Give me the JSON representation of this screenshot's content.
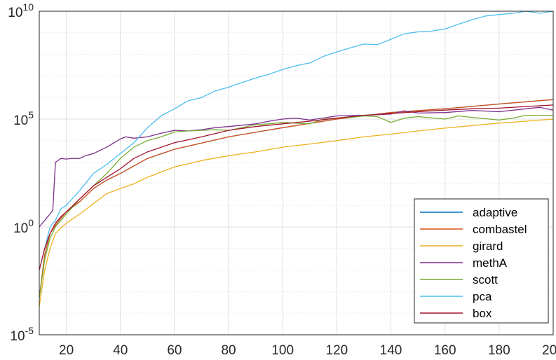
{
  "chart_data": {
    "type": "line",
    "title": "",
    "xlabel": "",
    "ylabel": "",
    "x_scale": "linear",
    "y_scale": "log",
    "xlim": [
      10,
      200
    ],
    "ylim": [
      1e-05,
      10000000000.0
    ],
    "x_ticks": [
      20,
      40,
      60,
      80,
      100,
      120,
      140,
      160,
      180,
      200
    ],
    "x_tick_labels": [
      "20",
      "40",
      "60",
      "80",
      "100",
      "120",
      "140",
      "160",
      "180",
      "200"
    ],
    "y_ticks": [
      {
        "value": 10000000000.0,
        "base": "10",
        "exp": "10"
      },
      {
        "value": 100000.0,
        "base": "10",
        "exp": "5"
      },
      {
        "value": 1,
        "base": "10",
        "exp": "0"
      },
      {
        "value": 1e-05,
        "base": "10",
        "exp": "-5"
      }
    ],
    "grid": true,
    "legend_position": "bottom-right",
    "series": [
      {
        "name": "adaptive",
        "color": "#0072BD",
        "x": [
          10,
          12,
          14,
          16,
          18,
          20,
          25,
          30,
          35,
          40,
          50,
          60,
          80,
          100,
          120,
          140,
          160,
          180,
          200
        ],
        "y": [
          0.0005,
          0.05,
          0.5,
          1.2,
          2.5,
          5,
          15,
          60,
          150,
          300,
          1500,
          4000,
          15000,
          40000,
          100000,
          200000,
          300000,
          500000,
          800000
        ]
      },
      {
        "name": "combastel",
        "color": "#D95319",
        "x": [
          10,
          12,
          14,
          16,
          18,
          20,
          25,
          30,
          35,
          40,
          50,
          60,
          80,
          100,
          120,
          140,
          160,
          180,
          200
        ],
        "y": [
          0.0005,
          0.05,
          0.5,
          1.2,
          2.5,
          5,
          15,
          60,
          150,
          300,
          1500,
          4000,
          15000,
          40000,
          100000,
          200000,
          300000,
          500000,
          800000
        ]
      },
      {
        "name": "girard",
        "color": "#EDB120",
        "x": [
          10,
          12,
          14,
          16,
          18,
          20,
          25,
          30,
          35,
          40,
          45,
          50,
          55,
          60,
          70,
          80,
          90,
          100,
          110,
          120,
          130,
          140,
          150,
          160,
          170,
          180,
          190,
          200
        ],
        "y": [
          0.0002,
          0.01,
          0.1,
          0.5,
          0.9,
          1.5,
          4,
          12,
          35,
          60,
          100,
          200,
          350,
          600,
          1200,
          2000,
          3000,
          5000,
          7000,
          10000,
          15000,
          20000,
          28000,
          38000,
          50000,
          65000,
          80000,
          100000
        ]
      },
      {
        "name": "methA",
        "color": "#7E2F8E",
        "x": [
          10,
          12,
          14,
          15,
          16,
          18,
          20,
          22,
          25,
          27,
          30,
          35,
          40,
          42,
          45,
          50,
          55,
          60,
          65,
          70,
          75,
          80,
          90,
          95,
          100,
          105,
          110,
          120,
          130,
          140,
          145,
          150,
          160,
          170,
          180,
          190,
          195,
          200
        ],
        "y": [
          1,
          2,
          4,
          6,
          1000,
          1500,
          1400,
          1500,
          1500,
          2000,
          2500,
          5000,
          12000,
          15000,
          13000,
          15000,
          22000,
          30000,
          28000,
          32000,
          40000,
          45000,
          60000,
          80000,
          100000,
          110000,
          90000,
          140000,
          150000,
          170000,
          240000,
          190000,
          200000,
          250000,
          220000,
          300000,
          350000,
          260000
        ]
      },
      {
        "name": "scott",
        "color": "#77AC30",
        "x": [
          10,
          12,
          14,
          16,
          18,
          20,
          25,
          30,
          35,
          40,
          45,
          50,
          55,
          60,
          65,
          70,
          75,
          80,
          85,
          90,
          95,
          100,
          110,
          115,
          120,
          125,
          130,
          135,
          140,
          145,
          150,
          160,
          165,
          170,
          180,
          185,
          190,
          200
        ],
        "y": [
          0.0005,
          0.03,
          0.3,
          1,
          2,
          4,
          20,
          80,
          300,
          1500,
          5000,
          10000,
          15000,
          25000,
          28000,
          30000,
          32000,
          30000,
          40000,
          55000,
          60000,
          70000,
          60000,
          100000,
          110000,
          120000,
          140000,
          130000,
          70000,
          110000,
          130000,
          100000,
          140000,
          120000,
          90000,
          110000,
          150000,
          150000
        ]
      },
      {
        "name": "pca",
        "color": "#4DBEEE",
        "x": [
          10,
          12,
          14,
          16,
          18,
          20,
          25,
          30,
          35,
          40,
          45,
          50,
          55,
          60,
          65,
          70,
          75,
          80,
          85,
          90,
          95,
          100,
          105,
          110,
          115,
          120,
          125,
          130,
          135,
          140,
          145,
          150,
          155,
          160,
          165,
          170,
          175,
          180,
          185,
          190,
          195,
          200
        ],
        "y": [
          0.01,
          0.1,
          1,
          2,
          7,
          10,
          50,
          300,
          800,
          2500,
          8000,
          40000,
          140000,
          300000,
          700000,
          1000000,
          2000000,
          3000000,
          5000000,
          8000000,
          12000000,
          20000000,
          30000000,
          40000000,
          80000000,
          130000000,
          200000000,
          300000000,
          280000000,
          500000000,
          900000000,
          1100000000,
          1200000000,
          1500000000,
          2500000000,
          4000000000,
          6000000000,
          7000000000,
          8000000000,
          10000000000,
          8000000000,
          10000000000
        ]
      },
      {
        "name": "box",
        "color": "#A2142F",
        "x": [
          10,
          12,
          14,
          16,
          18,
          20,
          25,
          30,
          35,
          40,
          45,
          50,
          60,
          70,
          80,
          90,
          100,
          110,
          120,
          130,
          140,
          150,
          160,
          170,
          180,
          190,
          200
        ],
        "y": [
          0.01,
          0.1,
          0.5,
          1.5,
          3,
          5,
          20,
          80,
          200,
          500,
          1500,
          3000,
          8000,
          15000,
          30000,
          45000,
          60000,
          80000,
          110000,
          150000,
          180000,
          220000,
          260000,
          300000,
          320000,
          380000,
          450000
        ]
      }
    ]
  }
}
